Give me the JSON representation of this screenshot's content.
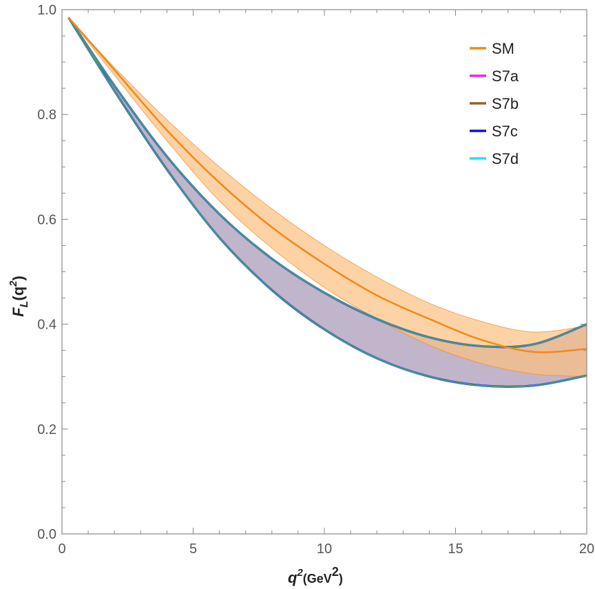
{
  "chart_data": {
    "type": "line",
    "title": "",
    "xlabel": {
      "symbol": "q",
      "sup": "2",
      "unit_open": "(GeV",
      "unit_sup": "2",
      "unit_close": ")"
    },
    "ylabel": {
      "symbol": "F",
      "sub": "L",
      "open": "(q",
      "sup": "2",
      "close": ")"
    },
    "xlim": [
      0,
      20
    ],
    "ylim": [
      0,
      1.0
    ],
    "x_ticks": [
      0,
      5,
      10,
      15,
      20
    ],
    "x_tick_labels": [
      "0",
      "5",
      "10",
      "15",
      "20"
    ],
    "y_ticks": [
      0,
      0.2,
      0.4,
      0.6,
      0.8,
      1.0
    ],
    "y_tick_labels": [
      "0.0",
      "0.2",
      "0.4",
      "0.6",
      "0.8",
      "1.0"
    ],
    "grid": false,
    "legend_position": "top-right",
    "x": [
      0.25,
      2,
      4,
      6,
      8,
      10,
      12,
      14,
      16,
      18,
      20
    ],
    "series": [
      {
        "name": "SM",
        "color": "#f28a1c",
        "band_fill": "#fcc080",
        "central": [
          0.985,
          0.885,
          0.77,
          0.67,
          0.585,
          0.515,
          0.455,
          0.41,
          0.37,
          0.347,
          0.353
        ],
        "upper": [
          0.985,
          0.89,
          0.79,
          0.7,
          0.62,
          0.55,
          0.49,
          0.44,
          0.405,
          0.385,
          0.397
        ],
        "lower": [
          0.985,
          0.875,
          0.75,
          0.635,
          0.545,
          0.47,
          0.41,
          0.36,
          0.325,
          0.305,
          0.3
        ]
      },
      {
        "name": "S7a",
        "color": "#e02fd0",
        "band_fill": "#b5a8c2",
        "upper": [
          0.985,
          0.855,
          0.72,
          0.61,
          0.525,
          0.46,
          0.41,
          0.375,
          0.358,
          0.362,
          0.4
        ],
        "lower": [
          0.985,
          0.845,
          0.695,
          0.565,
          0.465,
          0.39,
          0.335,
          0.3,
          0.283,
          0.283,
          0.302
        ]
      },
      {
        "name": "S7b",
        "color": "#9b6030",
        "band_fill": "#b5a8c2",
        "upper": [
          0.985,
          0.855,
          0.72,
          0.61,
          0.525,
          0.46,
          0.41,
          0.375,
          0.358,
          0.362,
          0.4
        ],
        "lower": [
          0.985,
          0.845,
          0.695,
          0.565,
          0.465,
          0.39,
          0.335,
          0.3,
          0.283,
          0.283,
          0.302
        ]
      },
      {
        "name": "S7c",
        "color": "#1010d8",
        "band_fill": "#b5a8c2",
        "upper": [
          0.985,
          0.855,
          0.72,
          0.61,
          0.525,
          0.46,
          0.41,
          0.375,
          0.358,
          0.362,
          0.4
        ],
        "lower": [
          0.985,
          0.845,
          0.695,
          0.565,
          0.465,
          0.39,
          0.335,
          0.3,
          0.283,
          0.283,
          0.302
        ]
      },
      {
        "name": "S7d",
        "color": "#22e0f0",
        "band_fill": "#b5a8c2",
        "upper": [
          0.985,
          0.855,
          0.72,
          0.61,
          0.525,
          0.46,
          0.41,
          0.375,
          0.358,
          0.362,
          0.4
        ],
        "lower": [
          0.985,
          0.845,
          0.695,
          0.565,
          0.465,
          0.39,
          0.335,
          0.3,
          0.283,
          0.283,
          0.302
        ]
      }
    ]
  }
}
